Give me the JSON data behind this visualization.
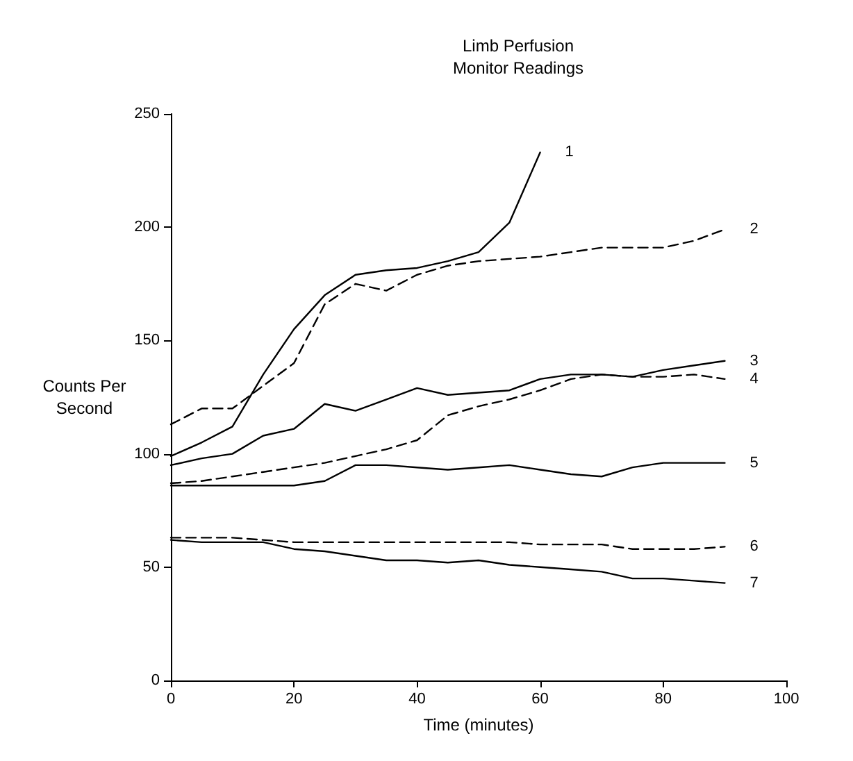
{
  "chart_data": {
    "type": "line",
    "title": "Limb Perfusion\nMonitor Readings",
    "xlabel": "Time (minutes)",
    "ylabel": "Counts Per Second",
    "x": [
      0,
      5,
      10,
      15,
      20,
      25,
      30,
      35,
      40,
      45,
      50,
      55,
      60,
      65,
      70,
      75,
      80,
      85,
      90
    ],
    "xlim": [
      0,
      100
    ],
    "xticks": [
      0,
      20,
      40,
      60,
      80,
      100
    ],
    "ylim": [
      0,
      250
    ],
    "yticks": [
      0,
      50,
      100,
      150,
      200,
      250
    ],
    "grid": false,
    "legend": false,
    "marker": "none",
    "series": [
      {
        "name": "1",
        "color": "#000000",
        "line_style": "solid",
        "values": [
          99,
          105,
          112,
          135,
          155,
          170,
          179,
          181,
          182,
          185,
          189,
          202,
          233,
          null,
          null,
          null,
          null,
          null,
          null
        ]
      },
      {
        "name": "2",
        "color": "#000000",
        "line_style": "dashed",
        "values": [
          113,
          120,
          120,
          130,
          140,
          166,
          175,
          172,
          179,
          183,
          185,
          186,
          187,
          189,
          191,
          191,
          191,
          194,
          199
        ]
      },
      {
        "name": "3",
        "color": "#000000",
        "line_style": "solid",
        "values": [
          95,
          98,
          100,
          108,
          111,
          122,
          119,
          124,
          129,
          126,
          127,
          128,
          133,
          135,
          135,
          134,
          137,
          139,
          141
        ]
      },
      {
        "name": "4",
        "color": "#000000",
        "line_style": "dashed",
        "values": [
          87,
          88,
          90,
          92,
          94,
          96,
          99,
          102,
          106,
          117,
          121,
          124,
          128,
          133,
          135,
          134,
          134,
          135,
          133
        ]
      },
      {
        "name": "5",
        "color": "#000000",
        "line_style": "solid",
        "values": [
          86,
          86,
          86,
          86,
          86,
          88,
          95,
          95,
          94,
          93,
          94,
          95,
          93,
          91,
          90,
          94,
          96,
          96,
          96
        ]
      },
      {
        "name": "6",
        "color": "#000000",
        "line_style": "dashed",
        "values": [
          63,
          63,
          63,
          62,
          61,
          61,
          61,
          61,
          61,
          61,
          61,
          61,
          60,
          60,
          60,
          58,
          58,
          58,
          59
        ]
      },
      {
        "name": "7",
        "color": "#000000",
        "line_style": "solid",
        "values": [
          62,
          61,
          61,
          61,
          58,
          57,
          55,
          53,
          53,
          52,
          53,
          51,
          50,
          49,
          48,
          45,
          45,
          44,
          43
        ]
      }
    ]
  }
}
